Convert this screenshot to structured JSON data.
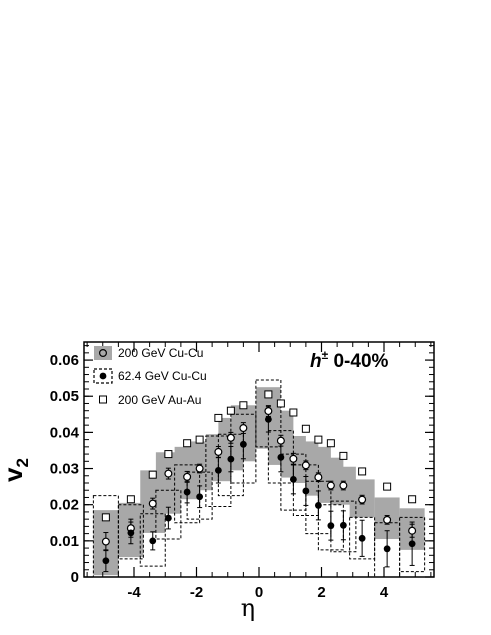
{
  "chart_data": {
    "type": "scatter",
    "xlabel": "η",
    "ylabel": "v",
    "ylabel_sub": "2",
    "xlim": [
      -5.6,
      5.6
    ],
    "ylim": [
      0,
      0.065
    ],
    "x_ticks": [
      -4,
      -2,
      0,
      2,
      4
    ],
    "x_tick_labels": [
      "-4",
      "-2",
      "0",
      "2",
      "4"
    ],
    "y_ticks": [
      0,
      0.01,
      0.02,
      0.03,
      0.04,
      0.05,
      0.06
    ],
    "y_tick_labels": [
      "0",
      "0.01",
      "0.02",
      "0.03",
      "0.04",
      "0.05",
      "0.06"
    ],
    "annotation": {
      "base": "h",
      "sup": "±",
      "rest": " 0-40%"
    },
    "legend_position": "top-left",
    "legend": [
      {
        "label": "200 GeV Cu-Cu",
        "key": "cu200"
      },
      {
        "label": "62.4 GeV Cu-Cu",
        "key": "cu62"
      },
      {
        "label": "200 GeV Au-Au",
        "key": "au200"
      }
    ],
    "colors": {
      "band": "#a8a8a8",
      "axis": "#000000",
      "marker": "#000000"
    },
    "series": [
      {
        "name": "200 GeV Cu-Cu",
        "key": "cu200",
        "marker": "open-circle",
        "syst": "filled-band",
        "halfwidth": 0.4,
        "x": [
          -4.9,
          -4.1,
          -3.4,
          -2.9,
          -2.3,
          -1.9,
          -1.3,
          -0.9,
          -0.5,
          0.3,
          0.7,
          1.1,
          1.5,
          1.9,
          2.3,
          2.7,
          3.3,
          4.1,
          4.9
        ],
        "y": [
          0.0098,
          0.0135,
          0.0203,
          0.0286,
          0.0277,
          0.03,
          0.0346,
          0.0385,
          0.0412,
          0.0459,
          0.0377,
          0.0327,
          0.0309,
          0.0276,
          0.0253,
          0.0253,
          0.0214,
          0.0158,
          0.0128
        ],
        "err": [
          0.0025,
          0.0025,
          0.0015,
          0.0015,
          0.0015,
          0.0012,
          0.0015,
          0.0015,
          0.0015,
          0.0015,
          0.0015,
          0.0015,
          0.0012,
          0.0012,
          0.0012,
          0.0012,
          0.0012,
          0.0012,
          0.0018
        ],
        "syst_low": [
          0.0005,
          0.0055,
          0.0122,
          0.0175,
          0.0215,
          0.024,
          0.0265,
          0.0295,
          0.032,
          0.0355,
          0.031,
          0.0275,
          0.026,
          0.0225,
          0.0205,
          0.02,
          0.0165,
          0.0105,
          0.0075
        ],
        "syst_high": [
          0.0185,
          0.0205,
          0.0295,
          0.0345,
          0.036,
          0.0375,
          0.0395,
          0.044,
          0.0475,
          0.0525,
          0.046,
          0.039,
          0.0375,
          0.036,
          0.033,
          0.0305,
          0.027,
          0.022,
          0.019
        ]
      },
      {
        "name": "62.4 GeV Cu-Cu",
        "key": "cu62",
        "marker": "filled-circle",
        "syst": "dashed-box",
        "halfwidth": 0.4,
        "x": [
          -4.9,
          -4.1,
          -3.4,
          -2.9,
          -2.3,
          -1.9,
          -1.3,
          -0.9,
          -0.5,
          0.3,
          0.7,
          1.1,
          1.5,
          1.9,
          2.3,
          2.7,
          3.3,
          4.1,
          4.9
        ],
        "y": [
          0.0045,
          0.0122,
          0.01,
          0.0163,
          0.0235,
          0.0222,
          0.0295,
          0.0326,
          0.0367,
          0.0436,
          0.0331,
          0.027,
          0.0238,
          0.0198,
          0.0142,
          0.0143,
          0.0107,
          0.0078,
          0.0092
        ],
        "err": [
          0.003,
          0.003,
          0.0025,
          0.003,
          0.003,
          0.003,
          0.0035,
          0.0035,
          0.004,
          0.0035,
          0.004,
          0.004,
          0.004,
          0.004,
          0.004,
          0.004,
          0.005,
          0.005,
          0.006
        ],
        "syst_low": [
          0.0,
          0.005,
          0.003,
          0.0105,
          0.015,
          0.016,
          0.0195,
          0.0225,
          0.026,
          0.036,
          0.026,
          0.0185,
          0.017,
          0.012,
          0.0075,
          0.007,
          0.005,
          0.0,
          0.0015
        ],
        "syst_high": [
          0.0225,
          0.02,
          0.0175,
          0.024,
          0.031,
          0.029,
          0.039,
          0.0395,
          0.045,
          0.0545,
          0.0405,
          0.034,
          0.031,
          0.0265,
          0.02,
          0.021,
          0.0165,
          0.015,
          0.0165
        ]
      },
      {
        "name": "200 GeV Au-Au",
        "key": "au200",
        "marker": "open-square",
        "x": [
          -4.9,
          -4.1,
          -3.4,
          -2.9,
          -2.3,
          -1.9,
          -1.3,
          -0.9,
          -0.5,
          0.3,
          0.7,
          1.1,
          1.5,
          1.9,
          2.3,
          2.7,
          3.3,
          4.1,
          4.9
        ],
        "y": [
          0.0165,
          0.0215,
          0.0283,
          0.034,
          0.037,
          0.038,
          0.044,
          0.046,
          0.0475,
          0.0505,
          0.048,
          0.0455,
          0.041,
          0.038,
          0.037,
          0.0335,
          0.0292,
          0.025,
          0.0215
        ]
      }
    ]
  }
}
